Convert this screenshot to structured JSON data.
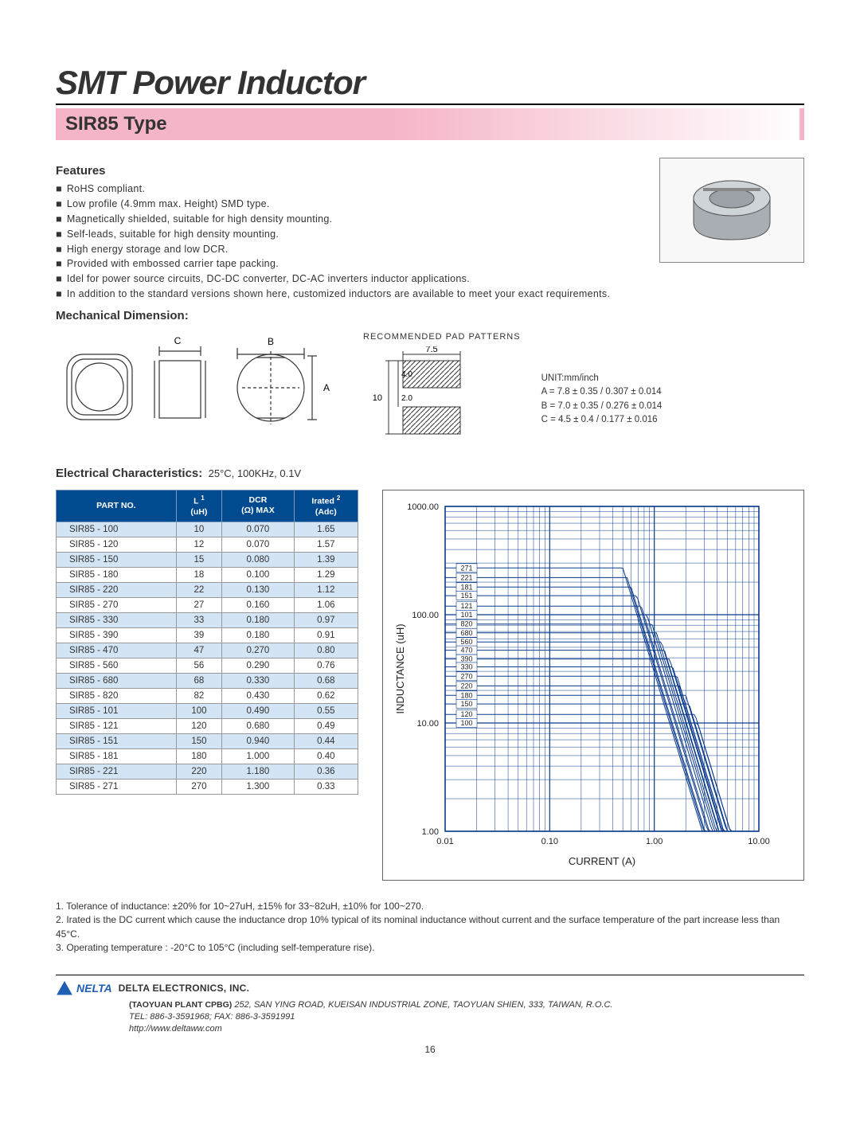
{
  "title": "SMT Power Inductor",
  "subtitle": "SIR85 Type",
  "features_title": "Features",
  "features": [
    "RoHS compliant.",
    "Low profile (4.9mm max. Height) SMD type.",
    "Magnetically shielded, suitable for high density mounting.",
    "Self-leads, suitable for high density mounting.",
    "High energy storage and low DCR.",
    "Provided with embossed carrier tape packing.",
    "Idel for power source circuits, DC-DC converter, DC-AC inverters inductor applications.",
    "In addition to the standard versions shown here, customized inductors are available to meet your exact requirements."
  ],
  "mech_title": "Mechanical Dimension:",
  "dim_labels": {
    "C": "C",
    "B": "B",
    "A": "A"
  },
  "pad_title": "RECOMMENDED PAD PATTERNS",
  "pad_dims": {
    "w": "7.5",
    "h": "10",
    "pad_h": "4.0",
    "gap": "2.0"
  },
  "unit_block": {
    "unit": "UNIT:mm/inch",
    "A": "A = 7.8 ± 0.35 / 0.307 ± 0.014",
    "B": "B = 7.0 ± 0.35 / 0.276 ± 0.014",
    "C": "C = 4.5 ± 0.4 / 0.177 ± 0.016"
  },
  "elec_title": "Electrical Characteristics:",
  "elec_cond": "25°C, 100KHz, 0.1V",
  "table": {
    "headers": {
      "part": "PART NO.",
      "L_line1": "L",
      "L_sup": "1",
      "L_line2": "(uH)",
      "dcr_line1": "DCR",
      "dcr_line2": "(Ω) MAX",
      "irated_line1": "Irated",
      "irated_sup": "2",
      "irated_line2": "(Adc)"
    },
    "rows": [
      [
        "SIR85 - 100",
        "10",
        "0.070",
        "1.65"
      ],
      [
        "SIR85 - 120",
        "12",
        "0.070",
        "1.57"
      ],
      [
        "SIR85 - 150",
        "15",
        "0.080",
        "1.39"
      ],
      [
        "SIR85 - 180",
        "18",
        "0.100",
        "1.29"
      ],
      [
        "SIR85 - 220",
        "22",
        "0.130",
        "1.12"
      ],
      [
        "SIR85 - 270",
        "27",
        "0.160",
        "1.06"
      ],
      [
        "SIR85 - 330",
        "33",
        "0.180",
        "0.97"
      ],
      [
        "SIR85 - 390",
        "39",
        "0.180",
        "0.91"
      ],
      [
        "SIR85 - 470",
        "47",
        "0.270",
        "0.80"
      ],
      [
        "SIR85 - 560",
        "56",
        "0.290",
        "0.76"
      ],
      [
        "SIR85 - 680",
        "68",
        "0.330",
        "0.68"
      ],
      [
        "SIR85 - 820",
        "82",
        "0.430",
        "0.62"
      ],
      [
        "SIR85 - 101",
        "100",
        "0.490",
        "0.55"
      ],
      [
        "SIR85 - 121",
        "120",
        "0.680",
        "0.49"
      ],
      [
        "SIR85 - 151",
        "150",
        "0.940",
        "0.44"
      ],
      [
        "SIR85 - 181",
        "180",
        "1.000",
        "0.40"
      ],
      [
        "SIR85 - 221",
        "220",
        "1.180",
        "0.36"
      ],
      [
        "SIR85 - 271",
        "270",
        "1.300",
        "0.33"
      ]
    ]
  },
  "chart": {
    "type": "log-log-line",
    "ylabel": "INDUCTANCE (uH)",
    "xlabel": "CURRENT (A)",
    "x_ticks": [
      "0.01",
      "0.10",
      "1.00",
      "10.00"
    ],
    "y_ticks": [
      "1.00",
      "10.00",
      "100.00",
      "1000.00"
    ],
    "x_range_log": [
      -2,
      1
    ],
    "y_range_log": [
      0,
      3
    ],
    "grid_color": "#0a3a8a",
    "label_box_fill": "#ffffff",
    "label_box_stroke": "#0a3a8a",
    "font_size_labels": 9,
    "series_labels": [
      "271",
      "221",
      "181",
      "151",
      "121",
      "101",
      "820",
      "680",
      "560",
      "470",
      "390",
      "330",
      "270",
      "220",
      "180",
      "150",
      "120",
      "100"
    ],
    "curves": [
      {
        "L0": 270,
        "Isat": 0.5
      },
      {
        "L0": 220,
        "Isat": 0.55
      },
      {
        "L0": 180,
        "Isat": 0.6
      },
      {
        "L0": 150,
        "Isat": 0.68
      },
      {
        "L0": 120,
        "Isat": 0.75
      },
      {
        "L0": 100,
        "Isat": 0.85
      },
      {
        "L0": 82,
        "Isat": 0.95
      },
      {
        "L0": 68,
        "Isat": 1.05
      },
      {
        "L0": 56,
        "Isat": 1.17
      },
      {
        "L0": 47,
        "Isat": 1.25
      },
      {
        "L0": 39,
        "Isat": 1.4
      },
      {
        "L0": 33,
        "Isat": 1.5
      },
      {
        "L0": 27,
        "Isat": 1.65
      },
      {
        "L0": 22,
        "Isat": 1.75
      },
      {
        "L0": 18,
        "Isat": 2.0
      },
      {
        "L0": 15,
        "Isat": 2.15
      },
      {
        "L0": 12,
        "Isat": 2.45
      },
      {
        "L0": 10,
        "Isat": 2.6
      }
    ],
    "line_color": "#0a3a8a",
    "line_width": 1
  },
  "notes": [
    "1. Tolerance of inductance: ±20% for 10~27uH, ±15% for 33~82uH, ±10% for 100~270.",
    "2. Irated is the DC current which cause the inductance drop 10% typical of its nominal inductance without current and the surface temperature of the part increase less than 45°C.",
    "3. Operating temperature : -20°C to 105°C (including self-temperature rise)."
  ],
  "footer": {
    "logo_text": "NELTA",
    "company": "DELTA ELECTRONICS, INC.",
    "plant": "(TAOYUAN PLANT CPBG)",
    "address": "252, SAN YING ROAD, KUEISAN INDUSTRIAL ZONE, TAOYUAN SHIEN, 333, TAIWAN, R.O.C.",
    "tel": "TEL: 886-3-3591968; FAX: 886-3-3591991",
    "url": "http://www.deltaww.com"
  },
  "page_number": "16",
  "colors": {
    "accent_pink": "#f5b5c8",
    "table_header": "#004a8f",
    "table_stripe": "#d3e4f4",
    "chart_ink": "#0a3a8a"
  }
}
